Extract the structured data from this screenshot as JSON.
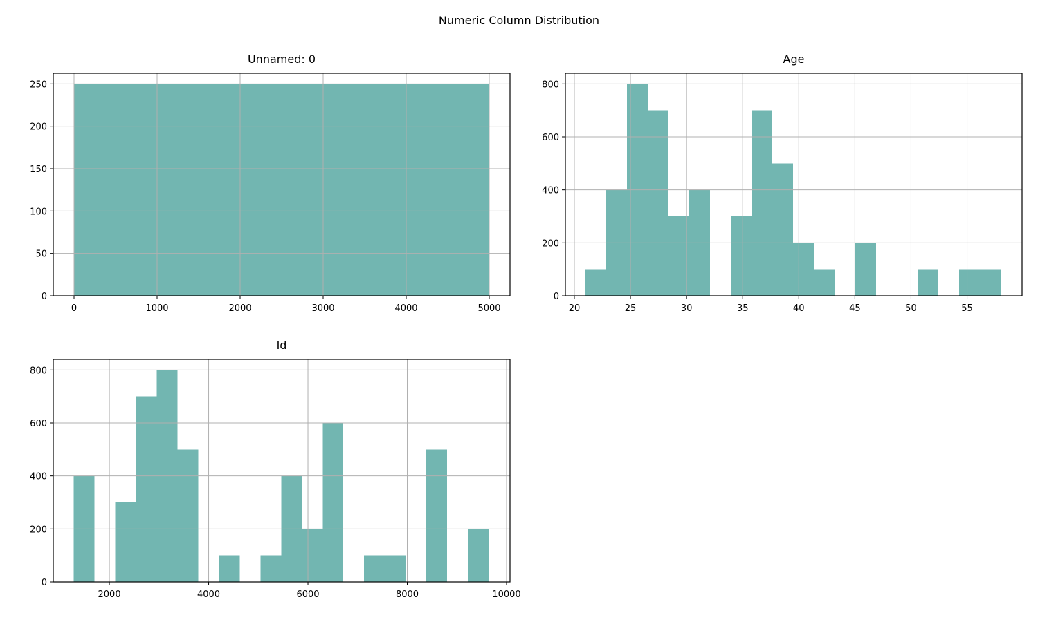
{
  "figure_title": "Numeric Column Distribution",
  "colors": {
    "bar": "#72b6b1",
    "grid": "#b0b0b0",
    "axis": "#000000"
  },
  "chart_data": [
    {
      "type": "bar",
      "title": "Unnamed: 0",
      "grid": true,
      "xlim": [
        -250,
        5250
      ],
      "ylim": [
        0,
        262.5
      ],
      "xticks": [
        0,
        1000,
        2000,
        3000,
        4000,
        5000
      ],
      "yticks": [
        0,
        50,
        100,
        150,
        200,
        250
      ],
      "bin_edges": [
        0,
        250,
        500,
        750,
        1000,
        1250,
        1500,
        1750,
        2000,
        2250,
        2500,
        2750,
        3000,
        3250,
        3500,
        3750,
        4000,
        4250,
        4500,
        4750,
        5000
      ],
      "values": [
        250,
        250,
        250,
        250,
        250,
        250,
        250,
        250,
        250,
        250,
        250,
        250,
        250,
        250,
        250,
        250,
        250,
        250,
        250,
        250
      ]
    },
    {
      "type": "bar",
      "title": "Age",
      "grid": true,
      "xlim": [
        19.2,
        59.9
      ],
      "ylim": [
        0,
        840
      ],
      "xticks": [
        20,
        25,
        30,
        35,
        40,
        45,
        50,
        55
      ],
      "yticks": [
        0,
        200,
        400,
        600,
        800
      ],
      "bin_edges": [
        21,
        22.85,
        24.7,
        26.55,
        28.4,
        30.25,
        32.1,
        33.95,
        35.8,
        37.65,
        39.5,
        41.35,
        43.2,
        45.05,
        46.9,
        48.75,
        50.6,
        52.45,
        54.3,
        56.15,
        58
      ],
      "values": [
        100,
        400,
        800,
        700,
        300,
        400,
        0,
        300,
        700,
        500,
        200,
        100,
        0,
        200,
        0,
        0,
        100,
        0,
        100,
        100
      ]
    },
    {
      "type": "bar",
      "title": "Id",
      "grid": true,
      "xlim": [
        870,
        10070
      ],
      "ylim": [
        0,
        840
      ],
      "xticks": [
        2000,
        4000,
        6000,
        8000,
        10000
      ],
      "yticks": [
        0,
        200,
        400,
        600,
        800
      ],
      "bin_edges": [
        1280,
        1698,
        2116,
        2534,
        2952,
        3370,
        3788,
        4206,
        4624,
        5042,
        5460,
        5878,
        6296,
        6714,
        7132,
        7550,
        7968,
        8386,
        8804,
        9222,
        9640
      ],
      "values": [
        400,
        0,
        300,
        700,
        800,
        500,
        0,
        100,
        0,
        100,
        400,
        200,
        600,
        0,
        100,
        100,
        0,
        500,
        0,
        200
      ]
    }
  ]
}
